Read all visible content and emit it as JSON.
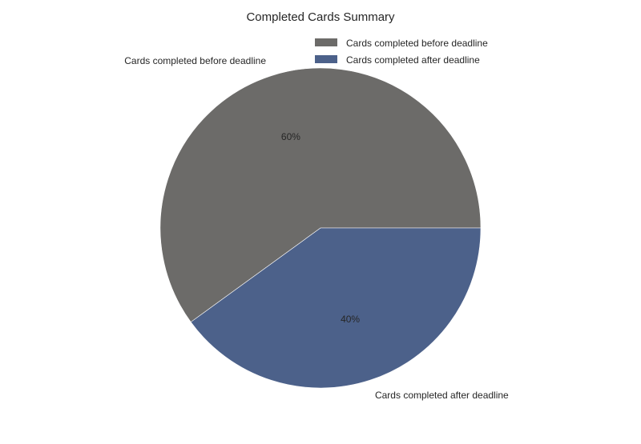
{
  "chart_data": {
    "type": "pie",
    "title": "Completed Cards Summary",
    "slices": [
      {
        "label": "Cards completed before deadline",
        "value": 60,
        "pct_label": "60%",
        "color": "#6c6b69"
      },
      {
        "label": "Cards completed after deadline",
        "value": 40,
        "pct_label": "40%",
        "color": "#4c618a"
      }
    ],
    "legend": {
      "placement": "top-right",
      "entries": [
        "Cards completed before deadline",
        "Cards completed after deadline"
      ]
    }
  }
}
